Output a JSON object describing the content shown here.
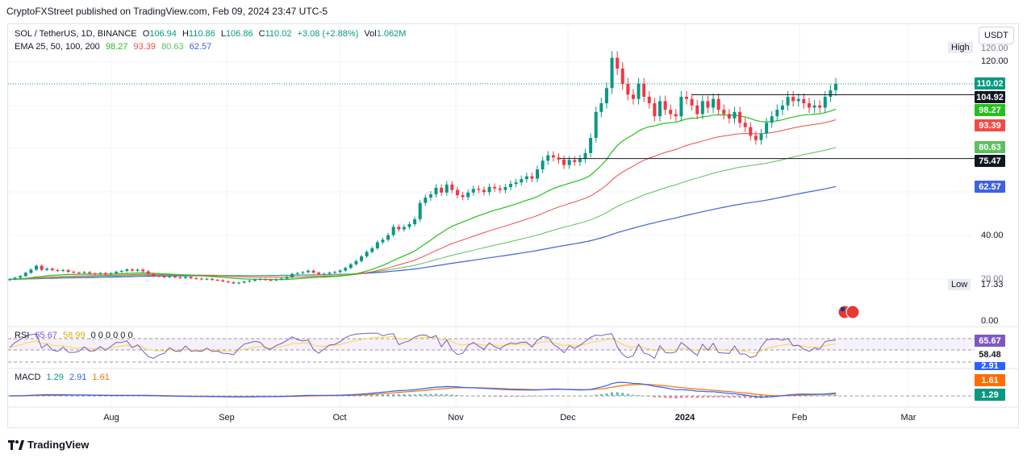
{
  "publisher": "CryptoFXStreet published on TradingView.com, Feb 09, 2024 23:47 UTC-5",
  "brand": "TradingView",
  "currency_button": "USDT",
  "legend": {
    "symbol": "SOL / TetherUS, 1D, BINANCE",
    "o_label": "O",
    "o": "106.94",
    "h_label": "H",
    "h": "110.86",
    "l_label": "L",
    "l": "106.86",
    "c_label": "C",
    "c": "110.02",
    "change": "+3.08 (+2.88%)",
    "vol_label": "Vol",
    "vol": "1.062M",
    "ema_title": "EMA 25, 50, 100, 200",
    "ema25": "98.27",
    "ema50": "93.39",
    "ema100": "80.63",
    "ema200": "62.57"
  },
  "rsi_legend": {
    "title": "RSI",
    "v1": "65.67",
    "v2": "58.99",
    "rest": "0 0 0 0 0 0"
  },
  "macd_legend": {
    "title": "MACD",
    "v1": "1.29",
    "v2": "2.91",
    "v3": "1.61"
  },
  "colors": {
    "up": "#089981",
    "down": "#f23645",
    "ema25": "#22c11b",
    "ema50": "#f04b4b",
    "ema100": "#5cbf5c",
    "ema200": "#3e63dd",
    "rsi": "#7e57c2",
    "rsi_ma": "#fdd835",
    "macd": "#2962ff",
    "signal": "#ff6d00"
  },
  "price_axis": {
    "ticks": [
      {
        "label": "120.00",
        "y_value": 120
      },
      {
        "label": "40.00",
        "y_value": 40
      },
      {
        "label": "20.00",
        "y_value": 20
      },
      {
        "label": "0.00",
        "y_value": 0
      }
    ],
    "high_label": "High",
    "high_value": "120.00",
    "low_label": "Low",
    "low_value": "17.33"
  },
  "price_tags": [
    {
      "value": "110.02",
      "color": "#089981"
    },
    {
      "value": "104.92",
      "color": "#131722"
    },
    {
      "value": "98.27",
      "color": "#22c11b"
    },
    {
      "value": "93.39",
      "color": "#f04b4b"
    },
    {
      "value": "80.63",
      "color": "#5cbf5c"
    },
    {
      "value": "75.47",
      "color": "#131722"
    },
    {
      "value": "62.57",
      "color": "#3e63dd"
    }
  ],
  "rsi_tags": [
    {
      "value": "65.67",
      "color": "#7e57c2"
    },
    {
      "value": "58.48",
      "color": "none"
    }
  ],
  "macd_tags": [
    {
      "value": "2.91",
      "color": "#2962ff"
    },
    {
      "value": "1.61",
      "color": "#ff6d00"
    },
    {
      "value": "1.29",
      "color": "#089981"
    }
  ],
  "time_axis": [
    "Aug",
    "Sep",
    "Oct",
    "Nov",
    "Dec",
    "2024",
    "Feb",
    "Mar"
  ],
  "chart_data": {
    "type": "candlestick",
    "title": "SOL / TetherUS, 1D, BINANCE",
    "ylim": [
      0,
      125
    ],
    "horizontal_lines": [
      104.92,
      75.47
    ],
    "closes": [
      19.5,
      20.2,
      21.0,
      22.5,
      24.0,
      25.8,
      23.9,
      24.5,
      23.8,
      23.4,
      23.8,
      23.0,
      22.6,
      22.4,
      22.8,
      22.2,
      22.0,
      22.4,
      21.9,
      22.3,
      23.0,
      23.4,
      24.1,
      23.5,
      24.0,
      23.2,
      22.0,
      21.1,
      20.8,
      20.5,
      20.9,
      20.4,
      20.1,
      20.6,
      20.0,
      19.8,
      19.5,
      19.7,
      19.2,
      19.0,
      18.5,
      18.1,
      17.6,
      17.9,
      18.4,
      18.8,
      19.3,
      19.6,
      19.2,
      19.0,
      19.4,
      19.8,
      20.5,
      22.0,
      22.4,
      22.8,
      23.5,
      22.6,
      21.9,
      22.1,
      22.6,
      22.9,
      23.6,
      24.8,
      26.5,
      28.0,
      30.2,
      32.3,
      34.0,
      36.8,
      38.0,
      40.2,
      44.0,
      42.8,
      43.9,
      45.2,
      47.5,
      55.0,
      57.5,
      59.0,
      62.0,
      59.8,
      63.5,
      61.0,
      58.6,
      57.7,
      59.8,
      61.5,
      61.0,
      60.0,
      62.4,
      61.7,
      61.0,
      62.3,
      63.8,
      64.5,
      66.0,
      67.3,
      66.2,
      70.5,
      74.5,
      77.0,
      76.0,
      75.0,
      72.5,
      74.8,
      73.9,
      75.3,
      78.0,
      85.0,
      97.0,
      101.0,
      108.0,
      122.0,
      117.0,
      110.0,
      105.0,
      103.0,
      110.0,
      104.0,
      101.0,
      95.0,
      102.0,
      98.0,
      96.0,
      95.0,
      104.0,
      103.0,
      100.0,
      96.0,
      102.0,
      99.0,
      103.0,
      98.0,
      96.0,
      94.0,
      97.0,
      92.0,
      90.0,
      86.0,
      84.0,
      87.0,
      92.0,
      95.0,
      98.0,
      100.0,
      104.0,
      102.0,
      103.0,
      101.0,
      99.0,
      100.0,
      99.0,
      104.0,
      107.0,
      110.0
    ],
    "ema25_end": 98.27,
    "ema50_end": 93.39,
    "ema100_end": 80.63,
    "ema200_end": 62.57
  }
}
